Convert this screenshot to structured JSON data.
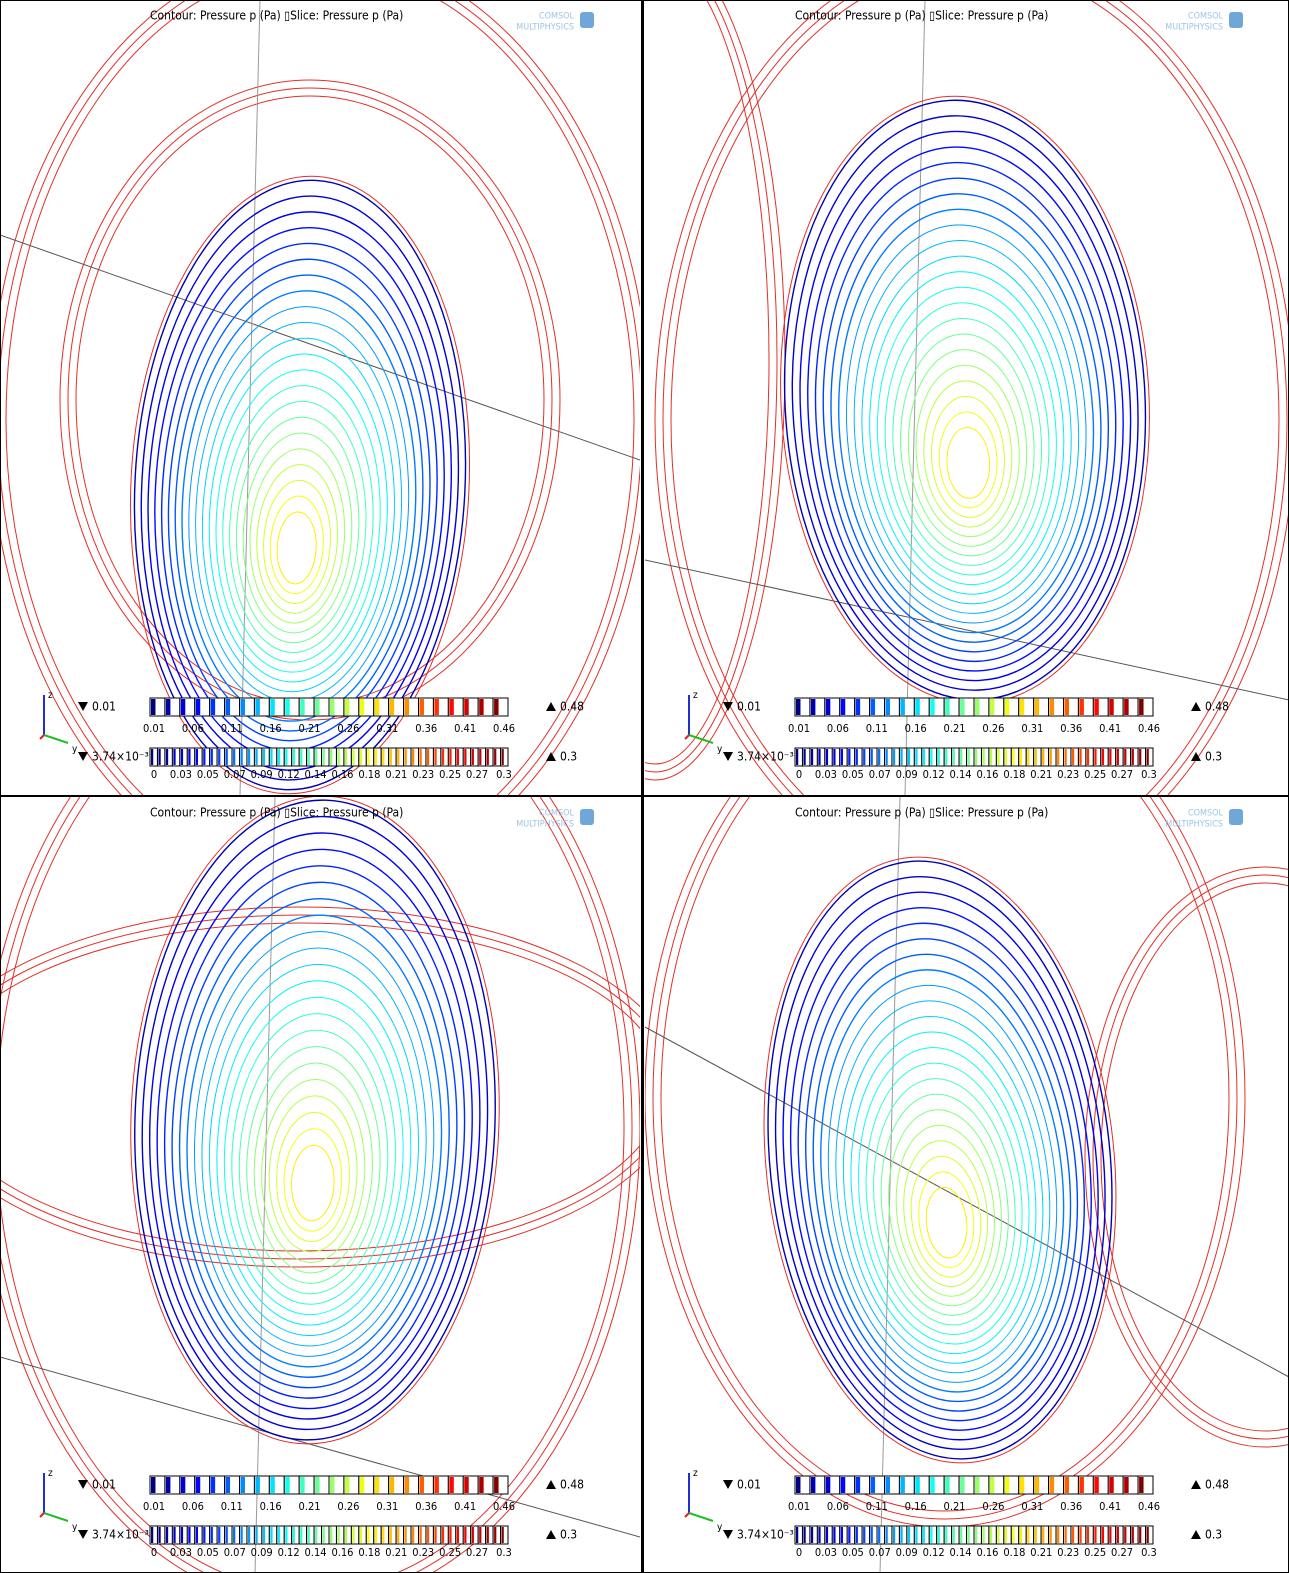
{
  "panels": [
    {
      "title": "Contour: Pressure p (Pa) ▯Slice: Pressure p (Pa)",
      "logo": [
        "COMSOL",
        "MULTIPHYSICS"
      ],
      "axes": [
        "z",
        "y"
      ],
      "contour_legend": {
        "min": "0.01",
        "max": "0.48",
        "ticks": [
          "0.01",
          "0.06",
          "0.11",
          "0.16",
          "0.21",
          "0.26",
          "0.31",
          "0.36",
          "0.41",
          "0.46"
        ]
      },
      "slice_legend": {
        "min": "3.74×10⁻³",
        "max": "0.3",
        "ticks": [
          "0",
          "0.03",
          "0.05",
          "0.07",
          "0.09",
          "0.12",
          "0.14",
          "0.16",
          "0.18",
          "0.21",
          "0.23",
          "0.25",
          "0.27",
          "0.3"
        ]
      }
    },
    {
      "title": "Contour: Pressure p (Pa) ▯Slice: Pressure p (Pa)",
      "logo": [
        "COMSOL",
        "MULTIPHYSICS"
      ],
      "axes": [
        "z",
        "y"
      ],
      "contour_legend": {
        "min": "0.01",
        "max": "0.48",
        "ticks": [
          "0.01",
          "0.06",
          "0.11",
          "0.16",
          "0.21",
          "0.26",
          "0.31",
          "0.36",
          "0.41",
          "0.46"
        ]
      },
      "slice_legend": {
        "min": "3.74×10⁻³",
        "max": "0.3",
        "ticks": [
          "0",
          "0.03",
          "0.05",
          "0.07",
          "0.09",
          "0.12",
          "0.14",
          "0.16",
          "0.18",
          "0.21",
          "0.23",
          "0.25",
          "0.27",
          "0.3"
        ]
      }
    },
    {
      "title": "Contour: Pressure p (Pa) ▯Slice: Pressure p (Pa)",
      "logo": [
        "COMSOL",
        "MULTIPHYSICS"
      ],
      "axes": [
        "z",
        "y"
      ],
      "contour_legend": {
        "min": "0.01",
        "max": "0.48",
        "ticks": [
          "0.01",
          "0.06",
          "0.11",
          "0.16",
          "0.21",
          "0.26",
          "0.31",
          "0.36",
          "0.41",
          "0.46"
        ]
      },
      "slice_legend": {
        "min": "3.74×10⁻³",
        "max": "0.3",
        "ticks": [
          "0",
          "0.03",
          "0.05",
          "0.07",
          "0.09",
          "0.12",
          "0.14",
          "0.16",
          "0.18",
          "0.21",
          "0.23",
          "0.25",
          "0.27",
          "0.3"
        ]
      }
    },
    {
      "title": "Contour: Pressure p (Pa) ▯Slice: Pressure p (Pa)",
      "logo": [
        "COMSOL",
        "MULTIPHYSICS"
      ],
      "axes": [
        "z",
        "y"
      ],
      "contour_legend": {
        "min": "0.01",
        "max": "0.48",
        "ticks": [
          "0.01",
          "0.06",
          "0.11",
          "0.16",
          "0.21",
          "0.26",
          "0.31",
          "0.36",
          "0.41",
          "0.46"
        ]
      },
      "slice_legend": {
        "min": "3.74×10⁻³",
        "max": "0.3",
        "ticks": [
          "0",
          "0.03",
          "0.05",
          "0.07",
          "0.09",
          "0.12",
          "0.14",
          "0.16",
          "0.18",
          "0.21",
          "0.23",
          "0.25",
          "0.27",
          "0.3"
        ]
      }
    }
  ]
}
